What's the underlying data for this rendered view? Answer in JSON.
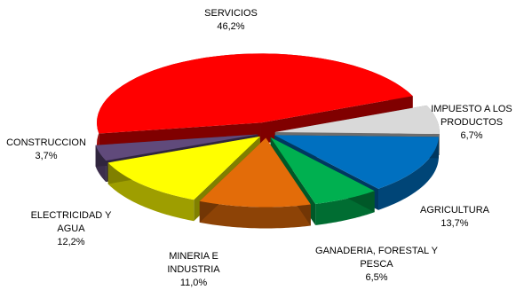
{
  "chart_data": {
    "type": "pie",
    "style": "3d-exploded",
    "title": "",
    "legend": "none",
    "slices": [
      {
        "label": "SERVICIOS",
        "value_label": "46,2%",
        "value": 46.2,
        "color": "#ff0000"
      },
      {
        "label": "IMPUESTO A LOS PRODUCTOS",
        "value_label": "6,7%",
        "value": 6.7,
        "color": "#d9d9d9"
      },
      {
        "label": "AGRICULTURA",
        "value_label": "13,7%",
        "value": 13.7,
        "color": "#0070c0"
      },
      {
        "label": "GANADERIA, FORESTAL Y PESCA",
        "value_label": "6,5%",
        "value": 6.5,
        "color": "#00b050"
      },
      {
        "label": "MINERIA E INDUSTRIA",
        "value_label": "11,0%",
        "value": 11.0,
        "color": "#e36c09"
      },
      {
        "label": "ELECTRICIDAD Y AGUA",
        "value_label": "12,2%",
        "value": 12.2,
        "color": "#ffff00"
      },
      {
        "label": "CONSTRUCCION",
        "value_label": "3,7%",
        "value": 3.7,
        "color": "#604a7b"
      }
    ]
  }
}
